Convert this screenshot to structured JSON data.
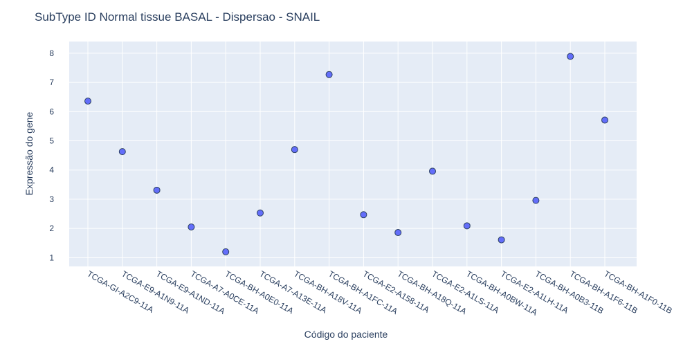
{
  "chart_data": {
    "type": "scatter",
    "title": "SubType ID Normal tissue BASAL - Dispersao - SNAIL",
    "xlabel": "Código do paciente",
    "ylabel": "Expressão do gene",
    "categories": [
      "TCGA-GI-A2C9-11A",
      "TCGA-E9-A1N9-11A",
      "TCGA-E9-A1ND-11A",
      "TCGA-A7-A0CE-11A",
      "TCGA-BH-A0E0-11A",
      "TCGA-A7-A13E-11A",
      "TCGA-BH-A18V-11A",
      "TCGA-BH-A1FC-11A",
      "TCGA-E2-A158-11A",
      "TCGA-BH-A18Q-11A",
      "TCGA-E2-A1LS-11A",
      "TCGA-BH-A0BW-11A",
      "TCGA-E2-A1LH-11A",
      "TCGA-BH-A0B3-11B",
      "TCGA-BH-A1F6-11B",
      "TCGA-BH-A1F0-11B"
    ],
    "values": [
      6.36,
      4.63,
      3.31,
      2.05,
      1.2,
      2.53,
      4.7,
      7.27,
      2.47,
      1.86,
      3.96,
      2.09,
      1.61,
      2.96,
      7.89,
      5.71
    ],
    "ylim": [
      0.7,
      8.4
    ],
    "yticks": [
      1,
      2,
      3,
      4,
      5,
      6,
      7,
      8
    ],
    "grid": true,
    "colors": {
      "plot_bg": "#e5ecf6",
      "grid": "#ffffff",
      "marker": "#636efa",
      "marker_edge": "#2a3f5f",
      "text": "#2a3f5f"
    }
  }
}
